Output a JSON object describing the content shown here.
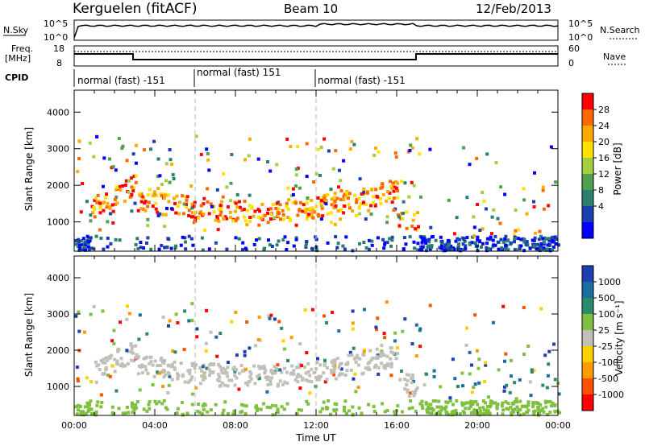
{
  "header": {
    "station": "Kerguelen (fitACF)",
    "beam": "Beam 10",
    "date": "12/Feb/2013"
  },
  "top_panels": {
    "nsky_label": "N.Sky",
    "nsearch_label": "N.Search",
    "nsky_ticks": [
      "10^5",
      "10^0"
    ],
    "nsearch_ticks": [
      "10^5",
      "10^0"
    ],
    "freq_label_1": "Freq.",
    "freq_label_2": "[MHz]",
    "freq_ticks": [
      "18",
      "8"
    ],
    "nave_label": "Nave",
    "nave_ticks": [
      "60",
      "0"
    ],
    "cpid_label": "CPID",
    "cpid_segments": [
      {
        "text": "normal (fast) -151",
        "start_hour": 0,
        "end_hour": 6
      },
      {
        "text": "normal (fast) 151",
        "start_hour": 6,
        "end_hour": 12
      },
      {
        "text": "normal (fast) -151",
        "start_hour": 12,
        "end_hour": 24
      }
    ]
  },
  "chart_data": [
    {
      "type": "heatmap",
      "name": "power",
      "ylabel": "Slant Range [km]",
      "xlabel": "Time UT",
      "xlim": [
        0,
        24
      ],
      "ylim": [
        200,
        4600
      ],
      "yticks": [
        1000,
        2000,
        3000,
        4000
      ],
      "xticks": [
        "00:00",
        "04:00",
        "08:00",
        "12:00",
        "16:00",
        "20:00",
        "00:00"
      ],
      "colorbar_label": "Power [dB]",
      "colorbar_ticks": [
        "28",
        "24",
        "20",
        "16",
        "12",
        "8",
        "4"
      ],
      "colorbar_colors": [
        "#ff0000",
        "#ff6a00",
        "#ffaa00",
        "#ffe000",
        "#a0d040",
        "#50a050",
        "#2a7f6f",
        "#1a3fb0",
        "#0000ff"
      ]
    },
    {
      "type": "heatmap",
      "name": "velocity",
      "ylabel": "Slant Range [km]",
      "xlabel": "Time UT",
      "xlim": [
        0,
        24
      ],
      "ylim": [
        200,
        4600
      ],
      "yticks": [
        1000,
        2000,
        3000,
        4000
      ],
      "xticks": [
        "00:00",
        "04:00",
        "08:00",
        "12:00",
        "16:00",
        "20:00",
        "00:00"
      ],
      "colorbar_label": "Velocity [m s⁻¹]",
      "colorbar_ticks": [
        "1000",
        "500",
        "100",
        "25",
        "-25",
        "-100",
        "-500",
        "-1000"
      ],
      "colorbar_colors": [
        "#1f3fb0",
        "#1a6fa0",
        "#2a8a6a",
        "#7fc040",
        "#c0c0b8",
        "#ffd000",
        "#ff9a00",
        "#ff5000",
        "#ff0000"
      ]
    }
  ],
  "x_axis_title": "Time UT"
}
